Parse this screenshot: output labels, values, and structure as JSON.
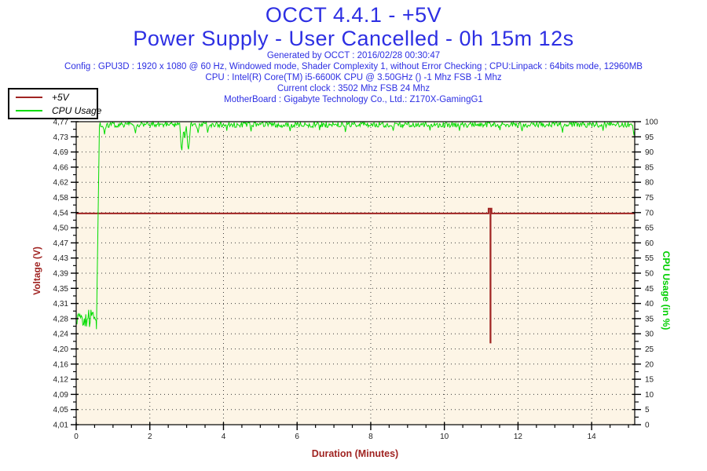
{
  "header": {
    "title_line1": "OCCT 4.4.1 - +5V",
    "title_line2": "Power Supply - User Cancelled - 0h 15m 12s",
    "generated": "Generated by OCCT : 2016/02/28 00:30:47",
    "config_line1": "Config : GPU3D : 1920 x 1080 @ 60 Hz, Windowed mode, Shader Complexity 1, without Error Checking ; CPU:Linpack : 64bits mode, 12960MB",
    "config_line2": "CPU : Intel(R) Core(TM) i5-6600K CPU @ 3.50GHz () -1 Mhz FSB -1 Mhz",
    "config_line3": "Current clock : 3502 Mhz FSB 24 Mhz",
    "config_line4": "MotherBoard : Gigabyte Technology Co., Ltd.: Z170X-GamingG1"
  },
  "legend": {
    "items": [
      {
        "label": "+5V",
        "color": "#a02422"
      },
      {
        "label": "CPU Usage",
        "color": "#00dc00"
      }
    ]
  },
  "colors": {
    "title_blue": "#2d2fe3",
    "dark_red": "#a02422",
    "green": "#00dc00",
    "plot_background": "#fdf5e6",
    "grid_dots": "#3c3c3c",
    "tick_text": "#1f1f1f"
  },
  "chart_data": {
    "type": "line",
    "title": "OCCT 4.4.1 - +5V",
    "subtitle": "Power Supply - User Cancelled - 0h 15m 12s",
    "grid": true,
    "background": "#fdf5e6",
    "x_axis": {
      "label": "Duration (Minutes)",
      "min": 0,
      "max": 15.17,
      "major_ticks": [
        0,
        2,
        4,
        6,
        8,
        10,
        12,
        14
      ],
      "tick_labels": [
        "0",
        "2",
        "4",
        "6",
        "8",
        "10",
        "12",
        "14"
      ],
      "minor_step": 0.5
    },
    "y_left": {
      "label": "Voltage (V)",
      "min": 4.01,
      "max": 4.77,
      "tick_values": [
        4.77,
        4.73,
        4.69,
        4.66,
        4.62,
        4.58,
        4.54,
        4.5,
        4.47,
        4.43,
        4.39,
        4.35,
        4.31,
        4.28,
        4.24,
        4.2,
        4.16,
        4.12,
        4.09,
        4.05,
        4.01
      ],
      "tick_labels": [
        "4,77",
        "4,73",
        "4,69",
        "4,66",
        "4,62",
        "4,58",
        "4,54",
        "4,50",
        "4,47",
        "4,43",
        "4,39",
        "4,35",
        "4,31",
        "4,28",
        "4,24",
        "4,20",
        "4,16",
        "4,12",
        "4,09",
        "4,05",
        "4,01"
      ],
      "color": "#a02422"
    },
    "y_right": {
      "label": "CPU Usage (in %)",
      "min": 0,
      "max": 100,
      "tick_labels": [
        "100",
        "95",
        "90",
        "85",
        "80",
        "75",
        "70",
        "65",
        "60",
        "55",
        "50",
        "45",
        "40",
        "35",
        "30",
        "25",
        "20",
        "15",
        "10",
        "5",
        "0"
      ],
      "color": "#00dc00"
    },
    "series": [
      {
        "name": "+5V",
        "axis": "left",
        "color": "#a02422",
        "width": 2,
        "points": [
          [
            0,
            4.54
          ],
          [
            11.2,
            4.54
          ],
          [
            11.2,
            4.552
          ],
          [
            11.25,
            4.552
          ],
          [
            11.25,
            4.216
          ],
          [
            11.255,
            4.216
          ],
          [
            11.255,
            4.552
          ],
          [
            11.28,
            4.552
          ],
          [
            11.28,
            4.54
          ],
          [
            15.17,
            4.54
          ]
        ]
      },
      {
        "name": "CPU Usage",
        "axis": "right",
        "color": "#00dc00",
        "width": 1,
        "noise_seed": 20160228,
        "sample_step": 0.02,
        "segments": [
          {
            "from": 0,
            "to": 0.55,
            "base": 35,
            "amp": 3
          },
          {
            "from": 0.55,
            "to": 0.63,
            "ramp": [
              31.5,
              98.4
            ]
          },
          {
            "from": 0.65,
            "to": 15.17,
            "base": 99.0,
            "amp": 0.9
          }
        ],
        "dips": [
          [
            0.77,
            95.8
          ],
          [
            1.62,
            96.2
          ],
          [
            2.86,
            93.0
          ],
          [
            2.88,
            90.6
          ],
          [
            2.9,
            93.5
          ],
          [
            2.96,
            94.6
          ],
          [
            3.03,
            92.0
          ],
          [
            3.05,
            90.9
          ],
          [
            3.07,
            93.0
          ],
          [
            3.32,
            96.3
          ],
          [
            3.57,
            96.4
          ],
          [
            4.1,
            97.0
          ],
          [
            4.75,
            96.8
          ],
          [
            5.8,
            96.9
          ],
          [
            6.6,
            97.2
          ],
          [
            7.3,
            96.6
          ],
          [
            8.6,
            97.0
          ],
          [
            9.6,
            97.1
          ],
          [
            10.4,
            97.0
          ],
          [
            11.5,
            97.2
          ],
          [
            12.1,
            96.9
          ],
          [
            13.2,
            96.4
          ],
          [
            14.3,
            97.0
          ],
          [
            15.15,
            95.5
          ]
        ]
      }
    ]
  }
}
